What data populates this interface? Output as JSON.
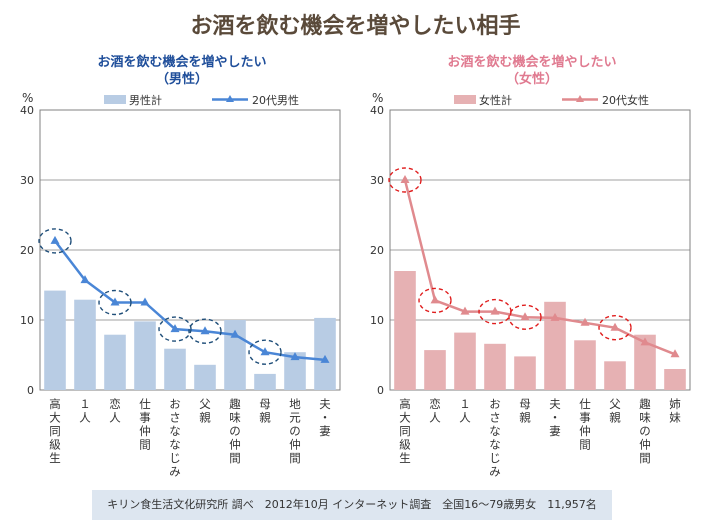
{
  "title": "お酒を飲む機会を増やしたい相手",
  "footer": "キリン食生活文化研究所 調べ　2012年10月 インターネット調査　全国16〜79歳男女　11,957名",
  "chart_data": [
    {
      "type": "bar",
      "title_line1": "お酒を飲む機会を増やしたい",
      "title_line2": "（男性）",
      "unit": "%",
      "ylim": [
        0,
        40
      ],
      "yticks": [
        0,
        10,
        20,
        30,
        40
      ],
      "categories": [
        "高大同級生",
        "１人",
        "恋人",
        "仕事仲間",
        "おさななじみ",
        "父親",
        "趣味の仲間",
        "母親",
        "地元の仲間",
        "夫・妻"
      ],
      "series": [
        {
          "name": "男性計",
          "kind": "bar",
          "values": [
            14.2,
            12.9,
            7.9,
            9.8,
            5.9,
            3.6,
            10.0,
            2.3,
            5.4,
            10.3
          ]
        },
        {
          "name": "20代男性",
          "kind": "line",
          "values": [
            21.3,
            15.7,
            12.5,
            12.5,
            8.7,
            8.4,
            7.9,
            5.4,
            4.7,
            4.3
          ]
        }
      ],
      "highlighted": [
        0,
        2,
        4,
        5,
        7
      ],
      "colors": {
        "bar": "#b8cce4",
        "line": "#4a86d6",
        "circle": "#1f4e79",
        "title": "#1f4e9a"
      },
      "grid": true,
      "legend": "top"
    },
    {
      "type": "bar",
      "title_line1": "お酒を飲む機会を増やしたい",
      "title_line2": "（女性）",
      "unit": "%",
      "ylim": [
        0,
        40
      ],
      "yticks": [
        0,
        10,
        20,
        30,
        40
      ],
      "categories": [
        "高大同級生",
        "恋人",
        "１人",
        "おさななじみ",
        "母親",
        "夫・妻",
        "仕事仲間",
        "父親",
        "趣味の仲間",
        "姉妹"
      ],
      "series": [
        {
          "name": "女性計",
          "kind": "bar",
          "values": [
            17.0,
            5.7,
            8.2,
            6.6,
            4.8,
            12.6,
            7.1,
            4.1,
            7.9,
            3.0
          ]
        },
        {
          "name": "20代女性",
          "kind": "line",
          "values": [
            30.0,
            12.8,
            11.2,
            11.2,
            10.4,
            10.3,
            9.6,
            8.9,
            6.8,
            5.1
          ]
        }
      ],
      "highlighted": [
        0,
        1,
        3,
        4,
        7
      ],
      "colors": {
        "bar": "#e6b1b3",
        "line": "#e08a8e",
        "circle": "#e01e1e",
        "title": "#e07a90"
      },
      "grid": true,
      "legend": "top"
    }
  ]
}
